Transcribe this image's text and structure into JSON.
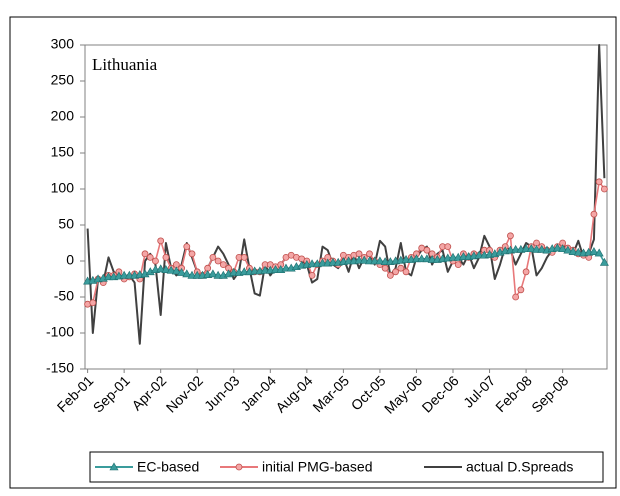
{
  "chart_data": {
    "type": "line",
    "annotation": "Lithuania",
    "categories": [
      "Feb-01",
      null,
      null,
      null,
      null,
      null,
      null,
      "Sep-01",
      null,
      null,
      null,
      null,
      null,
      null,
      "Apr-02",
      null,
      null,
      null,
      null,
      null,
      null,
      "Nov-02",
      null,
      null,
      null,
      null,
      null,
      null,
      "Jun-03",
      null,
      null,
      null,
      null,
      null,
      null,
      "Jan-04",
      null,
      null,
      null,
      null,
      null,
      null,
      "Aug-04",
      null,
      null,
      null,
      null,
      null,
      null,
      "Mar-05",
      null,
      null,
      null,
      null,
      null,
      null,
      "Oct-05",
      null,
      null,
      null,
      null,
      null,
      null,
      "May-06",
      null,
      null,
      null,
      null,
      null,
      null,
      "Dec-06",
      null,
      null,
      null,
      null,
      null,
      null,
      "Jul-07",
      null,
      null,
      null,
      null,
      null,
      null,
      "Feb-08",
      null,
      null,
      null,
      null,
      null,
      null,
      "Sep-08",
      null,
      null,
      null,
      null,
      null,
      null,
      null,
      null
    ],
    "series": [
      {
        "name": "EC-based",
        "color": "#3a9c9c",
        "marker": "triangle",
        "values": [
          -28,
          -27,
          -25,
          -24,
          -22,
          -22,
          -21,
          -20,
          -20,
          -20,
          -19,
          -18,
          -15,
          -12,
          -11,
          -12,
          -13,
          -14,
          -16,
          -18,
          -20,
          -20,
          -20,
          -19,
          -18,
          -20,
          -20,
          -18,
          -16,
          -16,
          -15,
          -15,
          -14,
          -14,
          -13,
          -13,
          -12,
          -12,
          -10,
          -10,
          -8,
          -6,
          -5,
          -4,
          -4,
          -3,
          -3,
          -2,
          -2,
          -1,
          0,
          0,
          1,
          1,
          0,
          0,
          0,
          -1,
          -1,
          0,
          1,
          2,
          2,
          3,
          3,
          3,
          2,
          2,
          3,
          4,
          5,
          5,
          6,
          6,
          7,
          8,
          8,
          9,
          10,
          12,
          14,
          15,
          16,
          16,
          17,
          17,
          16,
          16,
          15,
          17,
          18,
          17,
          15,
          13,
          12,
          11,
          12,
          13,
          11,
          -2
        ]
      },
      {
        "name": "initial PMG-based",
        "color": "#e8787a",
        "marker": "circle",
        "values": [
          -60,
          -58,
          -25,
          -30,
          -20,
          -20,
          -15,
          -25,
          -22,
          -18,
          -25,
          10,
          5,
          0,
          28,
          5,
          -10,
          -5,
          -10,
          20,
          10,
          -15,
          -20,
          -10,
          5,
          0,
          -5,
          -10,
          -15,
          5,
          5,
          -10,
          -15,
          -15,
          -5,
          -5,
          -8,
          -5,
          5,
          8,
          5,
          3,
          0,
          -20,
          -5,
          0,
          5,
          0,
          -5,
          8,
          5,
          8,
          10,
          5,
          10,
          0,
          -5,
          -10,
          -20,
          -15,
          -10,
          -15,
          5,
          10,
          18,
          15,
          10,
          5,
          20,
          20,
          0,
          -5,
          10,
          5,
          10,
          8,
          15,
          15,
          5,
          15,
          20,
          35,
          -50,
          -40,
          -15,
          20,
          25,
          20,
          15,
          12,
          20,
          25,
          18,
          15,
          10,
          8,
          5,
          65,
          110,
          100
        ]
      },
      {
        "name": "actual D.Spreads",
        "color": "#404040",
        "marker": "none",
        "values": [
          45,
          -100,
          -25,
          -30,
          5,
          -15,
          -20,
          -25,
          -20,
          -30,
          -115,
          0,
          10,
          -5,
          -75,
          25,
          -10,
          -20,
          -5,
          25,
          5,
          -15,
          -20,
          -10,
          5,
          20,
          10,
          -5,
          -25,
          -15,
          30,
          -10,
          -45,
          -48,
          -5,
          -20,
          -10,
          -5,
          5,
          8,
          5,
          0,
          -5,
          -30,
          -25,
          20,
          15,
          -5,
          -10,
          5,
          -15,
          10,
          -10,
          5,
          10,
          -5,
          28,
          20,
          -20,
          -10,
          25,
          -15,
          -20,
          5,
          15,
          20,
          -5,
          10,
          15,
          -15,
          0,
          5,
          -5,
          10,
          -10,
          5,
          35,
          20,
          -25,
          -5,
          20,
          15,
          -5,
          10,
          25,
          20,
          -20,
          -10,
          5,
          15,
          20,
          25,
          15,
          10,
          28,
          5,
          10,
          30,
          300,
          115
        ]
      }
    ],
    "ylim": [
      -150,
      300
    ],
    "yticks": [
      -150,
      -100,
      -50,
      0,
      50,
      100,
      150,
      200,
      250,
      300
    ],
    "grid": false
  }
}
